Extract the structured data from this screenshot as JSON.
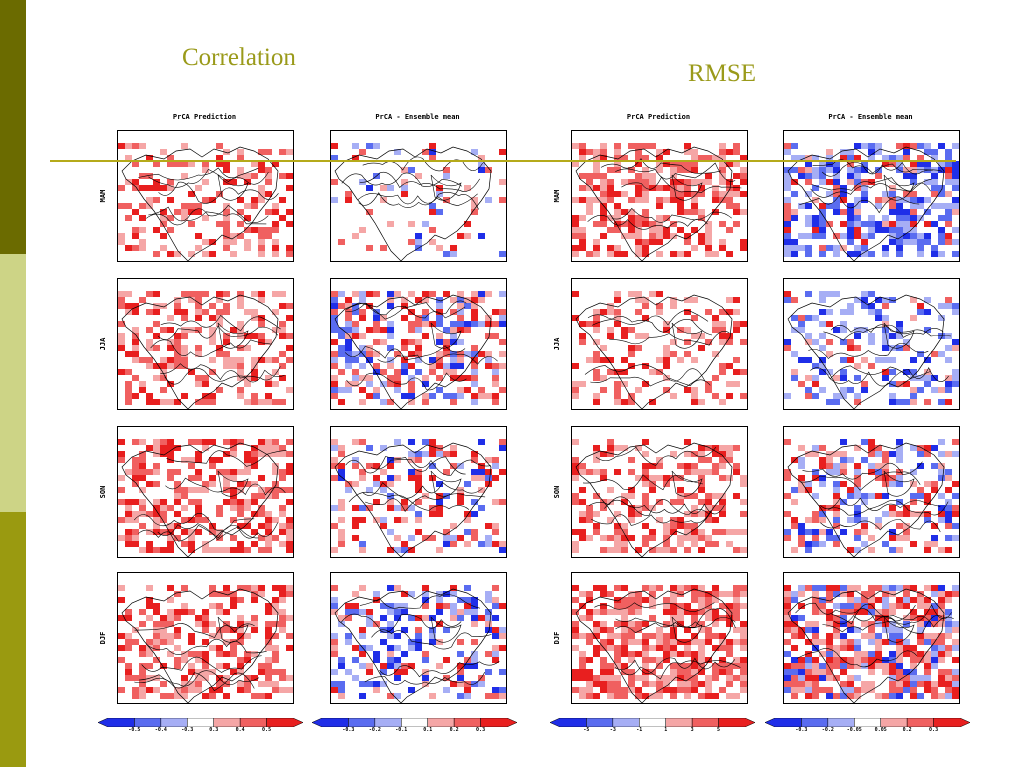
{
  "slide": {
    "correlation_title": "Correlation",
    "rmse_title": "RMSE",
    "colors": {
      "sidebar_dark": "#6b6b00",
      "sidebar_light": "#cdd486",
      "sidebar_mid": "#9a9a10",
      "title": "#9a9a1a",
      "rule": "#b5aa1a"
    }
  },
  "chart_data": {
    "type": "heatmap",
    "columns": [
      "PrCA Prediction",
      "PrCA - Ensemble mean",
      "PrCA Prediction",
      "PrCA - Ensemble mean"
    ],
    "column_groups": [
      "Correlation",
      "Correlation",
      "RMSE",
      "RMSE"
    ],
    "rows": [
      "MAM",
      "JJA",
      "SON",
      "DJF"
    ],
    "colorbars": [
      {
        "ticks": [
          "-0.5",
          "-0.4",
          "-0.3",
          "0.3",
          "0.4",
          "0.5"
        ]
      },
      {
        "ticks": [
          "-0.3",
          "-0.2",
          "-0.1",
          "0.1",
          "0.2",
          "0.3"
        ]
      },
      {
        "ticks": [
          "-5",
          "-3",
          "-1",
          "1",
          "3",
          "5"
        ]
      },
      {
        "ticks": [
          "-0.3",
          "-0.2",
          "-0.05",
          "0.05",
          "0.2",
          "0.3"
        ]
      }
    ],
    "colors": {
      "neg_strong": "#1f2ee8",
      "neg_mid": "#5a6cf0",
      "neg_weak": "#a6aef5",
      "pos_weak": "#f5a6a6",
      "pos_mid": "#f06060",
      "pos_strong": "#e81f1f"
    },
    "panels": [
      [
        {
          "neg": 0.0,
          "pos": 0.35
        },
        {
          "neg": 0.08,
          "pos": 0.08
        },
        {
          "neg": 0.0,
          "pos": 0.55
        },
        {
          "neg": 0.45,
          "pos": 0.15
        }
      ],
      [
        {
          "neg": 0.0,
          "pos": 0.45
        },
        {
          "neg": 0.2,
          "pos": 0.3
        },
        {
          "neg": 0.0,
          "pos": 0.3
        },
        {
          "neg": 0.3,
          "pos": 0.08
        }
      ],
      [
        {
          "neg": 0.0,
          "pos": 0.5
        },
        {
          "neg": 0.12,
          "pos": 0.22
        },
        {
          "neg": 0.0,
          "pos": 0.45
        },
        {
          "neg": 0.2,
          "pos": 0.25
        }
      ],
      [
        {
          "neg": 0.0,
          "pos": 0.45
        },
        {
          "neg": 0.25,
          "pos": 0.15
        },
        {
          "neg": 0.0,
          "pos": 0.65
        },
        {
          "neg": 0.25,
          "pos": 0.5
        }
      ]
    ]
  }
}
